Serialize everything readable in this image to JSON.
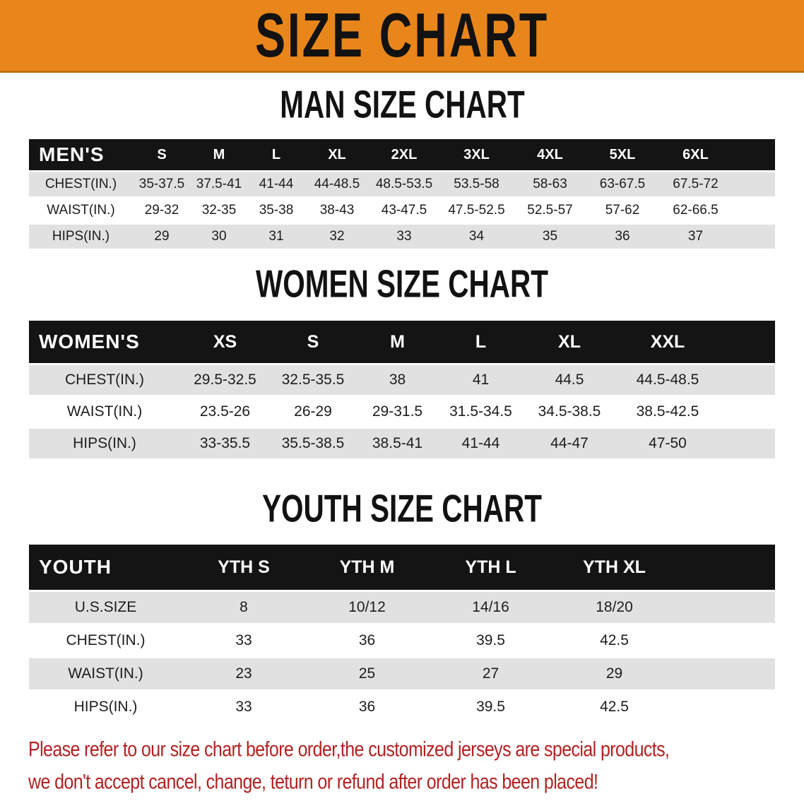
{
  "banner": {
    "title": "SIZE CHART"
  },
  "colors": {
    "banner_bg": "#E8861B",
    "heading_text": "#121212",
    "table_header_bg": "#141414",
    "table_header_text": "#FFFFFF",
    "row_stripe": "#E1E1E1",
    "note_text": "#B22222"
  },
  "sections": [
    {
      "heading": "MAN SIZE CHART",
      "table": {
        "header_label": "MEN'S",
        "columns": [
          "S",
          "M",
          "L",
          "XL",
          "2XL",
          "3XL",
          "4XL",
          "5XL",
          "6XL"
        ],
        "rows": [
          {
            "label": "CHEST(IN.)",
            "values": [
              "35-37.5",
              "37.5-41",
              "41-44",
              "44-48.5",
              "48.5-53.5",
              "53.5-58",
              "58-63",
              "63-67.5",
              "67.5-72"
            ]
          },
          {
            "label": "WAIST(IN.)",
            "values": [
              "29-32",
              "32-35",
              "35-38",
              "38-43",
              "43-47.5",
              "47.5-52.5",
              "52.5-57",
              "57-62",
              "62-66.5"
            ]
          },
          {
            "label": "HIPS(IN.)",
            "values": [
              "29",
              "30",
              "31",
              "32",
              "33",
              "34",
              "35",
              "36",
              "37"
            ]
          }
        ]
      }
    },
    {
      "heading": "WOMEN SIZE CHART",
      "table": {
        "header_label": "WOMEN'S",
        "columns": [
          "XS",
          "S",
          "M",
          "L",
          "XL",
          "XXL"
        ],
        "rows": [
          {
            "label": "CHEST(IN.)",
            "values": [
              "29.5-32.5",
              "32.5-35.5",
              "38",
              "41",
              "44.5",
              "44.5-48.5"
            ]
          },
          {
            "label": "WAIST(IN.)",
            "values": [
              "23.5-26",
              "26-29",
              "29-31.5",
              "31.5-34.5",
              "34.5-38.5",
              "38.5-42.5"
            ]
          },
          {
            "label": "HIPS(IN.)",
            "values": [
              "33-35.5",
              "35.5-38.5",
              "38.5-41",
              "41-44",
              "44-47",
              "47-50"
            ]
          }
        ]
      }
    },
    {
      "heading": "YOUTH SIZE CHART",
      "table": {
        "header_label": "YOUTH",
        "columns": [
          "YTH S",
          "YTH M",
          "YTH L",
          "YTH XL"
        ],
        "rows": [
          {
            "label": "U.S.SIZE",
            "values": [
              "8",
              "10/12",
              "14/16",
              "18/20"
            ]
          },
          {
            "label": "CHEST(IN.)",
            "values": [
              "33",
              "36",
              "39.5",
              "42.5"
            ]
          },
          {
            "label": "WAIST(IN.)",
            "values": [
              "23",
              "25",
              "27",
              "29"
            ]
          },
          {
            "label": "HIPS(IN.)",
            "values": [
              "33",
              "36",
              "39.5",
              "42.5"
            ]
          }
        ]
      }
    }
  ],
  "note": {
    "line1": "Please refer to our size chart before order,the customized jerseys are special products,",
    "line2": "we don't accept cancel, change, teturn or refund after order has been placed!"
  }
}
